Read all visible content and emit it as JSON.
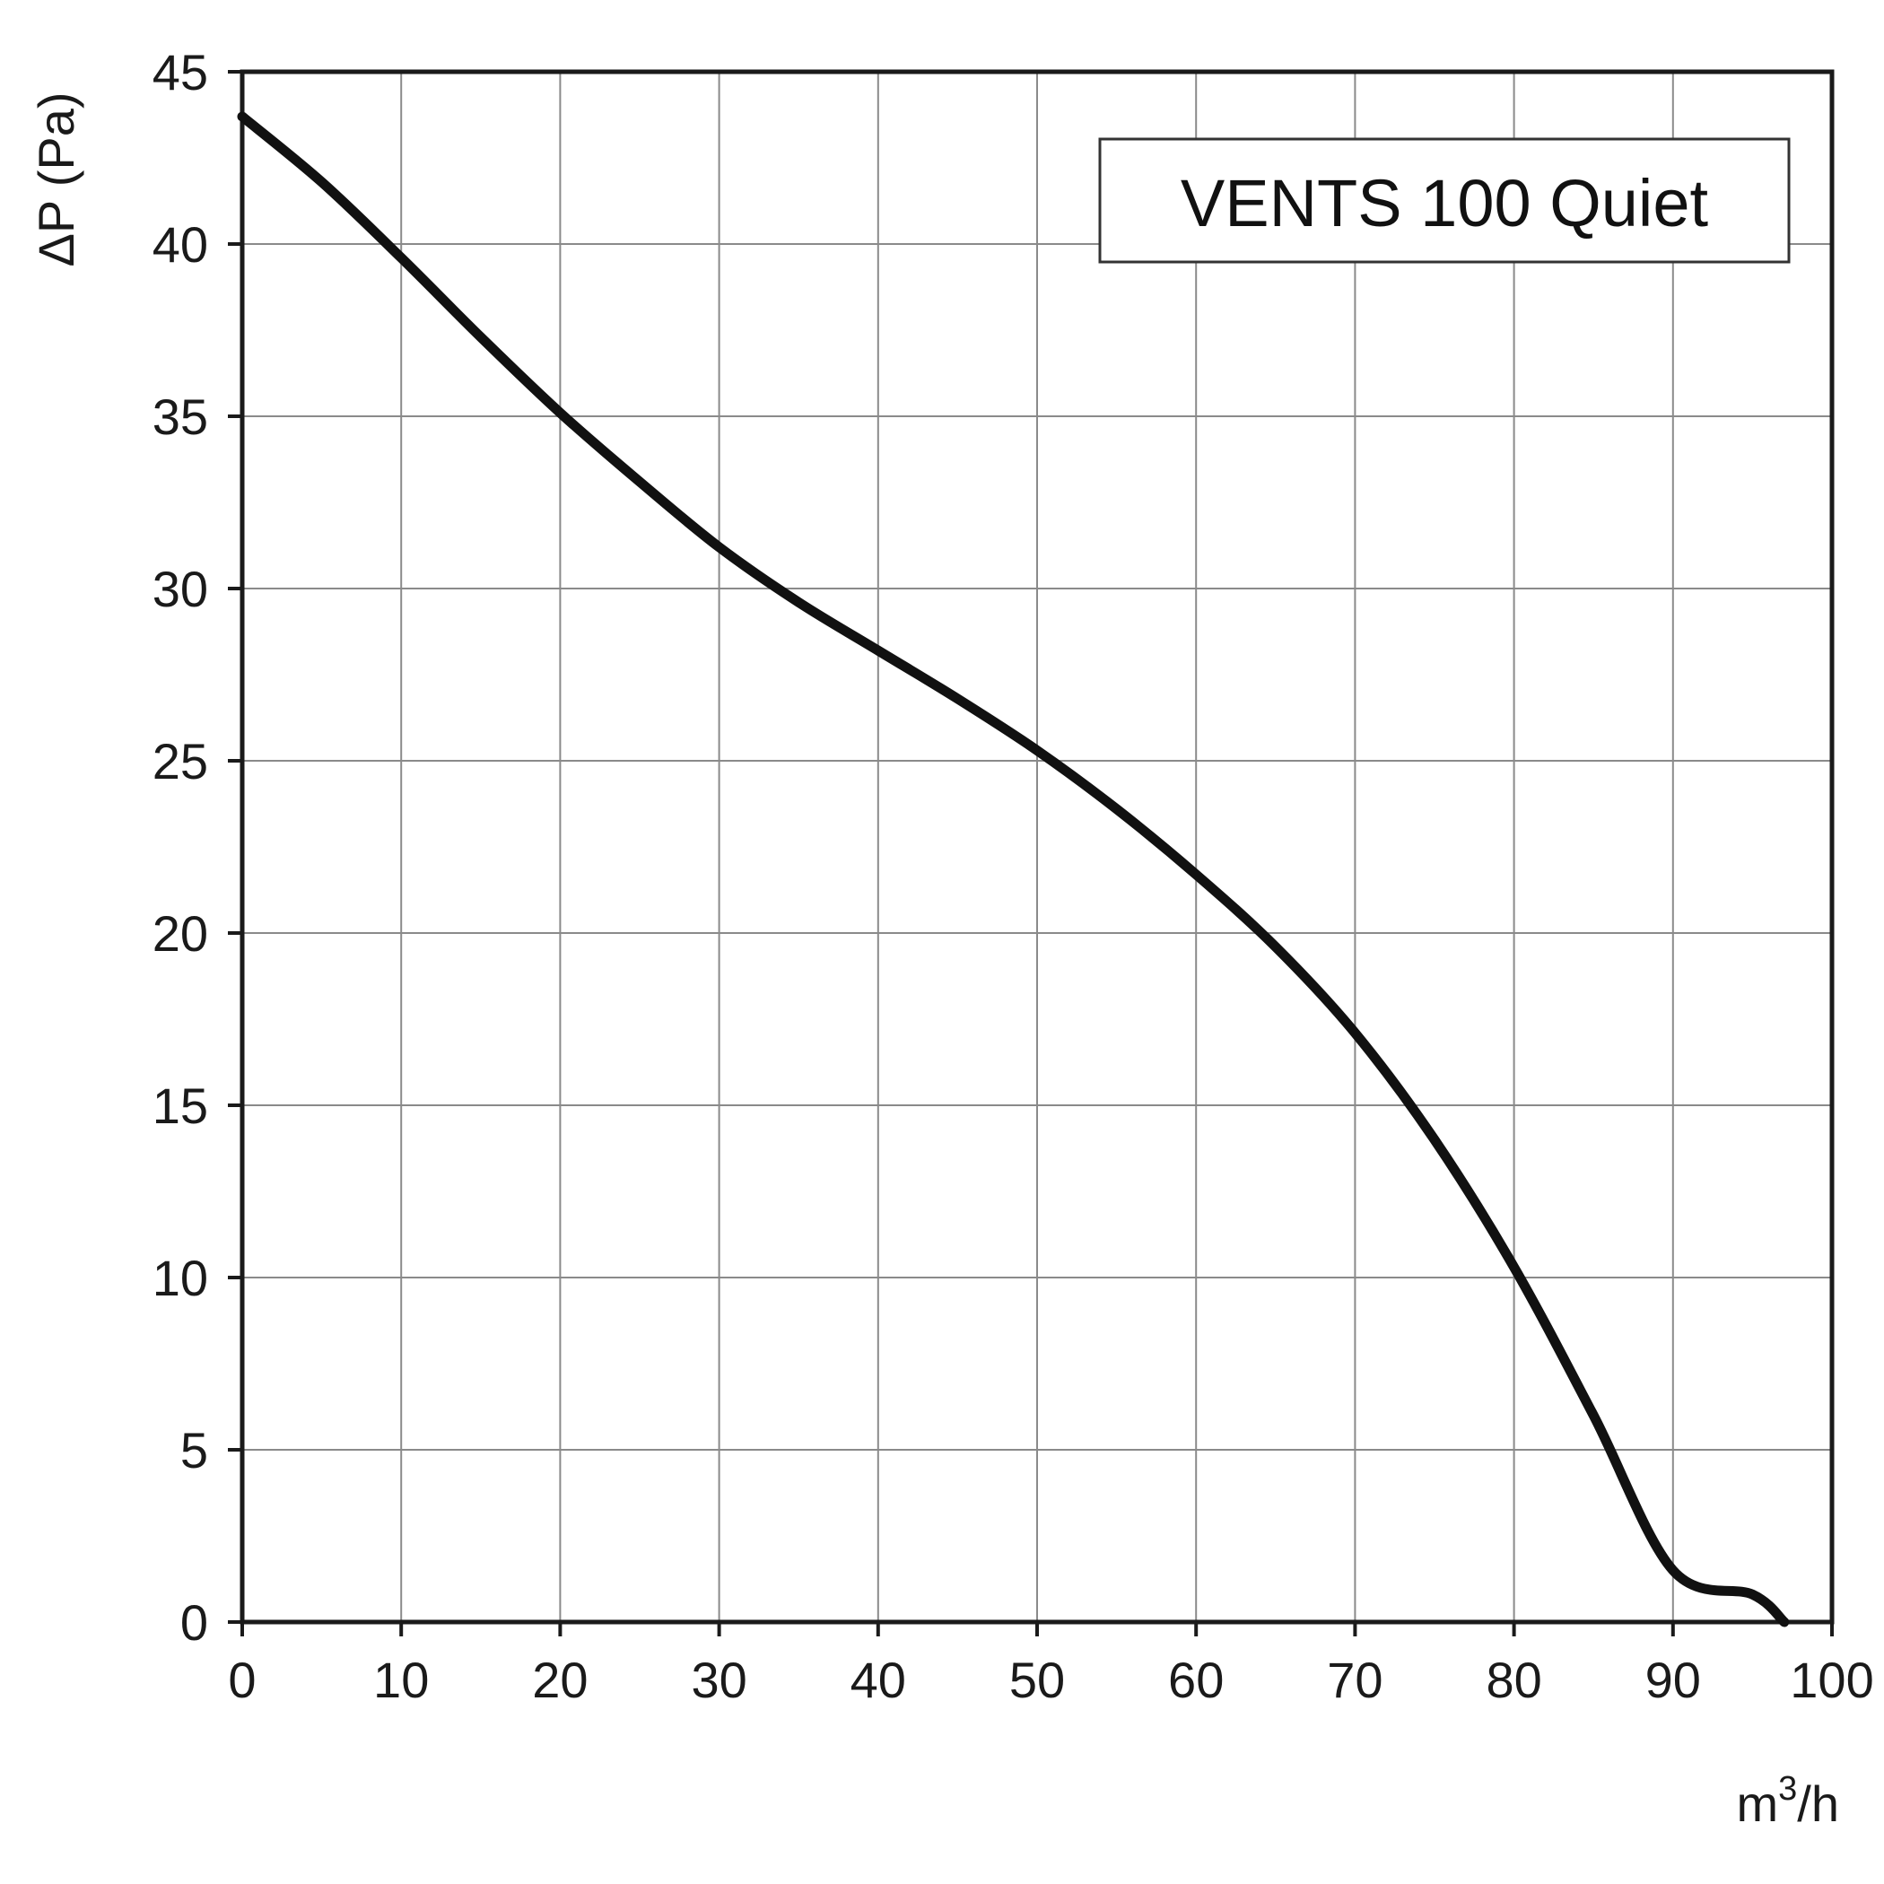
{
  "chart_data": {
    "type": "line",
    "ylabel": "ΔP (Pa)",
    "xlabel_base": "m",
    "xlabel_sup": "3",
    "xlabel_suffix": "/h",
    "xlim": [
      0,
      100
    ],
    "ylim": [
      0,
      45
    ],
    "x_ticks": [
      0,
      10,
      20,
      30,
      40,
      50,
      60,
      70,
      80,
      90,
      100
    ],
    "y_ticks": [
      0,
      5,
      10,
      15,
      20,
      25,
      30,
      35,
      40,
      45
    ],
    "grid": true,
    "legend_position": "top-right",
    "series": [
      {
        "name": "VENTS 100 Quiet",
        "color": "#111111",
        "x": [
          0,
          5,
          10,
          15,
          20,
          25,
          30,
          35,
          40,
          45,
          50,
          55,
          60,
          65,
          70,
          75,
          80,
          85,
          90,
          95,
          97
        ],
        "y": [
          43.7,
          41.8,
          39.6,
          37.3,
          35.1,
          33.1,
          31.2,
          29.6,
          28.2,
          26.8,
          25.3,
          23.6,
          21.7,
          19.6,
          17.1,
          14.0,
          10.3,
          6.0,
          1.5,
          0.8,
          0
        ]
      }
    ]
  }
}
